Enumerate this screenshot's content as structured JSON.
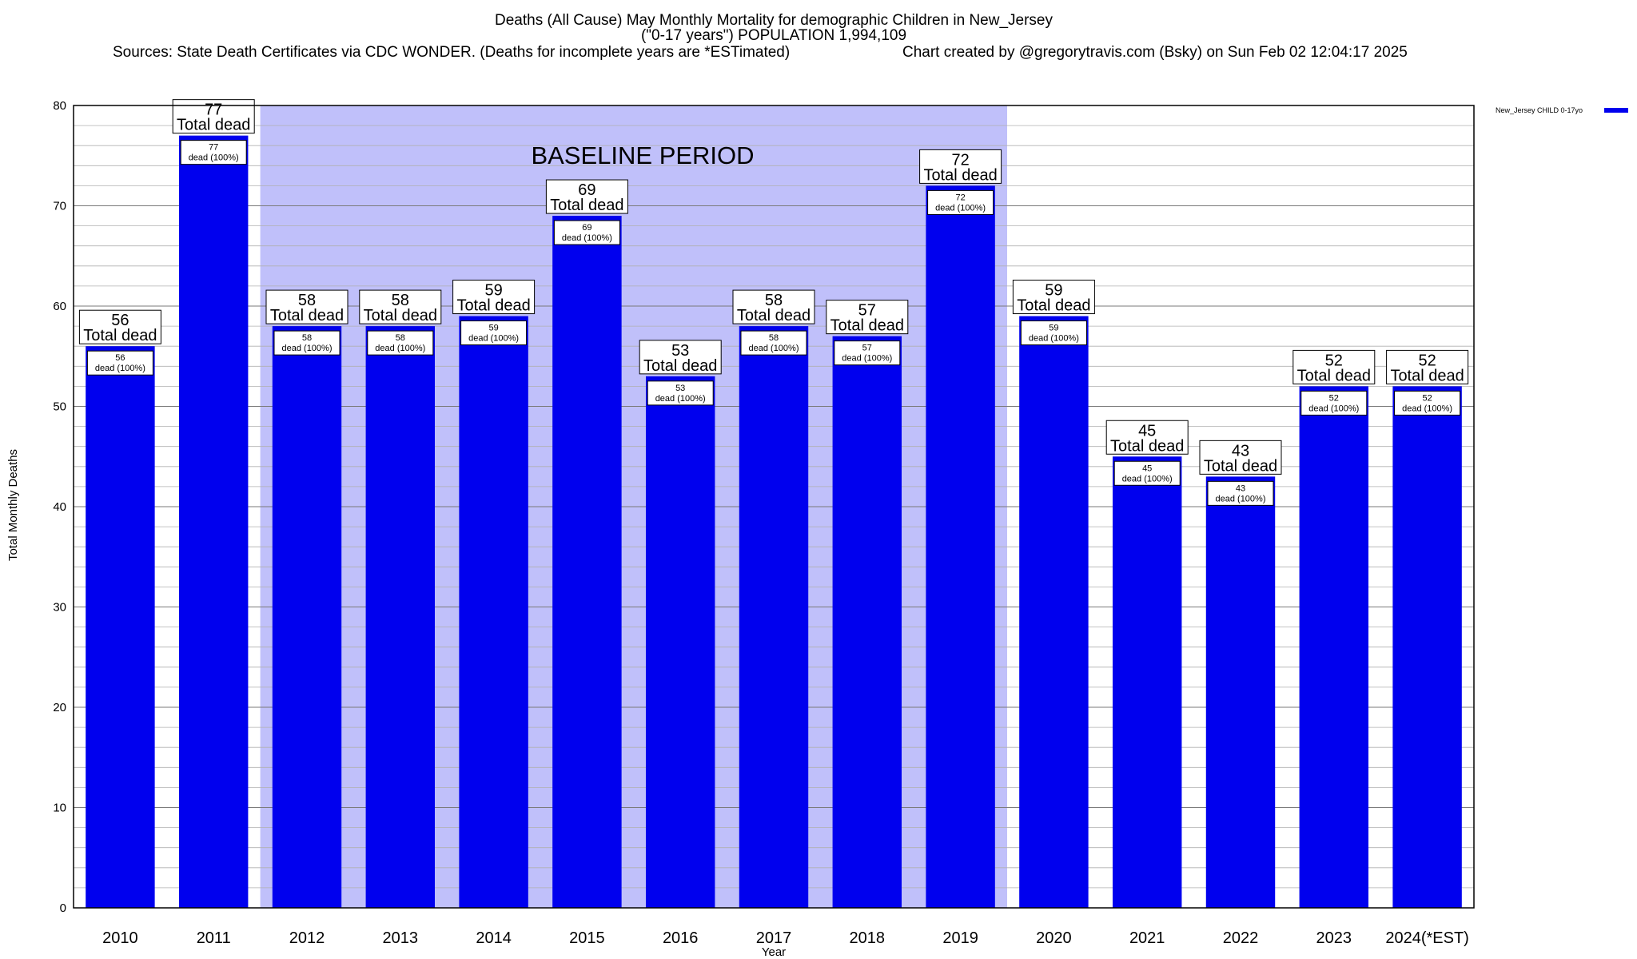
{
  "chart_data": {
    "type": "bar",
    "title": "Deaths (All Cause) May Monthly Mortality for demographic Children in New_Jersey",
    "subtitle": "(\"0-17 years\") POPULATION 1,994,109",
    "sources": "Sources: State Death Certificates via CDC WONDER. (Deaths for incomplete years are *ESTimated)",
    "credit": "Chart created by @gregorytravis.com (Bsky) on Sun Feb 02 12:04:17 2025",
    "xlabel": "Year",
    "ylabel": "Total Monthly Deaths",
    "ylim": [
      0,
      80
    ],
    "yticks": [
      0,
      10,
      20,
      30,
      40,
      50,
      60,
      70,
      80
    ],
    "grid": true,
    "legend_position": "top-right",
    "categories": [
      "2010",
      "2011",
      "2012",
      "2013",
      "2014",
      "2015",
      "2016",
      "2017",
      "2018",
      "2019",
      "2020",
      "2021",
      "2022",
      "2023",
      "2024(*EST)"
    ],
    "series": [
      {
        "name": "New_Jersey CHILD 0-17yo",
        "color": "#0000ee",
        "values": [
          56,
          77,
          58,
          58,
          59,
          69,
          53,
          58,
          57,
          72,
          59,
          45,
          43,
          52,
          52
        ]
      }
    ],
    "total_label": "Total dead",
    "bar_label_suffix": "dead (100%)",
    "baseline": {
      "label": "BASELINE PERIOD",
      "from": "2012",
      "to": "2019",
      "color": "#c0c0fa"
    }
  }
}
